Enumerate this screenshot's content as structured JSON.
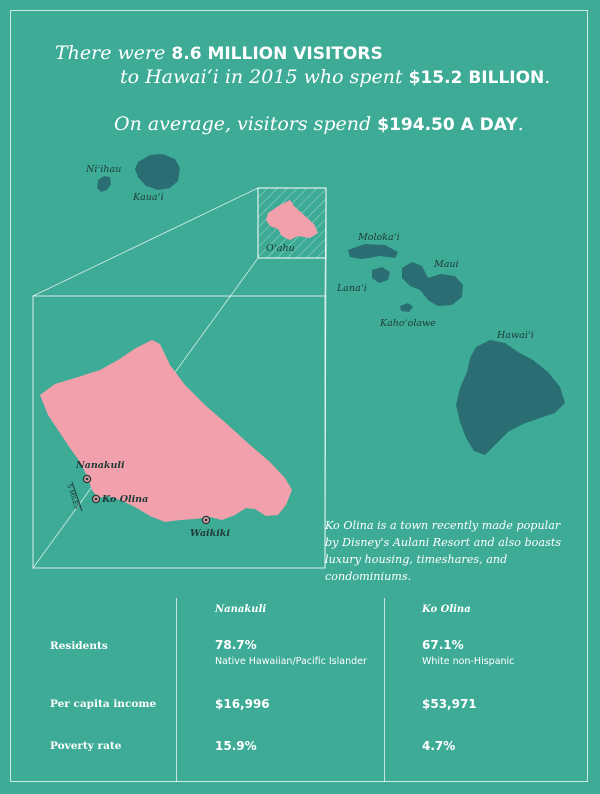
{
  "headline": {
    "line1_pre": "There were ",
    "line1_em": "8.6 MILLION VISITORS",
    "line2_pre": "to Hawaiʻi in 2015 who spent ",
    "line2_em": "$15.2 BILLION",
    "line2_post": ".",
    "line3_pre": "On average, visitors spend ",
    "line3_em": "$194.50 A DAY",
    "line3_post": "."
  },
  "map": {
    "islands": [
      "Niʻihau",
      "Kauaʻi",
      "Oʻahu",
      "Molokaʻi",
      "Lanaʻi",
      "Maui",
      "Kahoʻolawe",
      "Hawaiʻi"
    ],
    "places": [
      "Nanakuli",
      "Ko Olina",
      "Waikiki"
    ],
    "scale_label": "5 MILES",
    "colors": {
      "ocean": "#3dab96",
      "islands": "#2a6e74",
      "oahu": "#f2a1ac",
      "labels": "#1e3b37"
    }
  },
  "note": "Ko Olina is a town recently made popular by Disney's Aulani Resort and also boasts luxury housing, timeshares, and condominiums.",
  "table": {
    "columns": [
      "Nanakuli",
      "Ko Olina"
    ],
    "rows": [
      {
        "label": "Residents",
        "nanakuli": "78.7%",
        "nanakuli_sub": "Native Hawaiian/Pacific Islander",
        "koolina": "67.1%",
        "koolina_sub": "White non-Hispanic"
      },
      {
        "label": "Per capita income",
        "nanakuli": "$16,996",
        "koolina": "$53,971"
      },
      {
        "label": "Poverty rate",
        "nanakuli": "15.9%",
        "koolina": "4.7%"
      }
    ]
  }
}
